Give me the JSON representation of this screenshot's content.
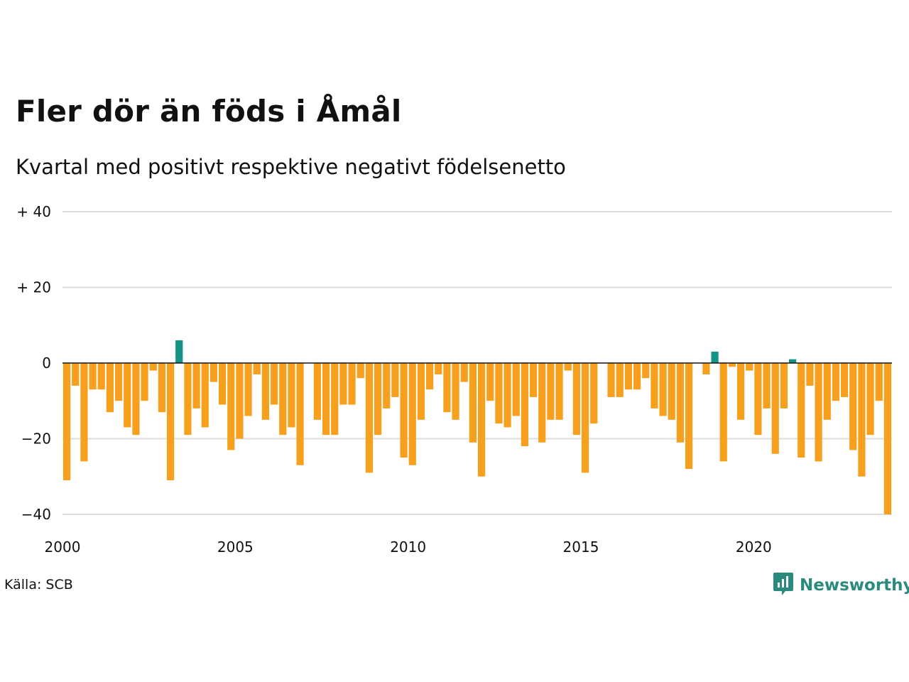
{
  "header": {
    "title": "Fler dör än föds i Åmål",
    "subtitle": "Kvartal med positivt respektive negativt födelsenetto"
  },
  "footer": {
    "source": "Källa: SCB",
    "brand": "Newsworthy",
    "brand_icon": "newsworthy-chart-bubble-icon"
  },
  "colors": {
    "negative": "#f7a01e",
    "positive": "#149485",
    "grid": "#dddddd",
    "zero_line": "#111111",
    "brand": "#2b8a7e"
  },
  "chart_data": {
    "type": "bar",
    "title": "Fler dör än föds i Åmål",
    "subtitle": "Kvartal med positivt respektive negativt födelsenetto",
    "xlabel": "",
    "ylabel": "",
    "ylim": [
      -40,
      40
    ],
    "yticks": [
      40,
      20,
      0,
      -20,
      -40
    ],
    "ytick_labels": [
      "+ 40",
      "+ 20",
      "0",
      "−20",
      "−40"
    ],
    "xlim": [
      2000,
      2024
    ],
    "xticks": [
      2000,
      2005,
      2010,
      2015,
      2020
    ],
    "xtick_labels": [
      "2000",
      "2005",
      "2010",
      "2015",
      "2020"
    ],
    "grid": true,
    "categories": [
      "2000Q1",
      "2000Q2",
      "2000Q3",
      "2000Q4",
      "2001Q1",
      "2001Q2",
      "2001Q3",
      "2001Q4",
      "2002Q1",
      "2002Q2",
      "2002Q3",
      "2002Q4",
      "2003Q1",
      "2003Q2",
      "2003Q3",
      "2003Q4",
      "2004Q1",
      "2004Q2",
      "2004Q3",
      "2004Q4",
      "2005Q1",
      "2005Q2",
      "2005Q3",
      "2005Q4",
      "2006Q1",
      "2006Q2",
      "2006Q3",
      "2006Q4",
      "2007Q1",
      "2007Q2",
      "2007Q3",
      "2007Q4",
      "2008Q1",
      "2008Q2",
      "2008Q3",
      "2008Q4",
      "2009Q1",
      "2009Q2",
      "2009Q3",
      "2009Q4",
      "2010Q1",
      "2010Q2",
      "2010Q3",
      "2010Q4",
      "2011Q1",
      "2011Q2",
      "2011Q3",
      "2011Q4",
      "2012Q1",
      "2012Q2",
      "2012Q3",
      "2012Q4",
      "2013Q1",
      "2013Q2",
      "2013Q3",
      "2013Q4",
      "2014Q1",
      "2014Q2",
      "2014Q3",
      "2014Q4",
      "2015Q1",
      "2015Q2",
      "2015Q3",
      "2015Q4",
      "2016Q1",
      "2016Q2",
      "2016Q3",
      "2016Q4",
      "2017Q1",
      "2017Q2",
      "2017Q3",
      "2017Q4",
      "2018Q1",
      "2018Q2",
      "2018Q3",
      "2018Q4",
      "2019Q1",
      "2019Q2",
      "2019Q3",
      "2019Q4",
      "2020Q1",
      "2020Q2",
      "2020Q3",
      "2020Q4",
      "2021Q1",
      "2021Q2",
      "2021Q3",
      "2021Q4",
      "2022Q1",
      "2022Q2",
      "2022Q3",
      "2022Q4",
      "2023Q1",
      "2023Q2",
      "2023Q3",
      "2023Q4"
    ],
    "values": [
      -31,
      -6,
      -26,
      -7,
      -7,
      -13,
      -10,
      -17,
      -19,
      -10,
      -2,
      -13,
      -31,
      6,
      -19,
      -12,
      -17,
      -5,
      -11,
      -23,
      -20,
      -14,
      -3,
      -15,
      -11,
      -19,
      -17,
      -27,
      0,
      -15,
      -19,
      -19,
      -11,
      -11,
      -4,
      -29,
      -19,
      -12,
      -9,
      -25,
      -27,
      -15,
      -7,
      -3,
      -13,
      -15,
      -5,
      -21,
      -30,
      -10,
      -16,
      -17,
      -14,
      -22,
      -9,
      -21,
      -15,
      -15,
      -2,
      -19,
      -29,
      -16,
      0,
      -9,
      -9,
      -7,
      -7,
      -4,
      -12,
      -14,
      -15,
      -21,
      -28,
      0,
      -3,
      3,
      -26,
      -1,
      -15,
      -2,
      -19,
      -12,
      -24,
      -12,
      1,
      -25,
      -6,
      -26,
      -15,
      -10,
      -9,
      -23,
      -30,
      -19,
      -10,
      -40
    ]
  }
}
